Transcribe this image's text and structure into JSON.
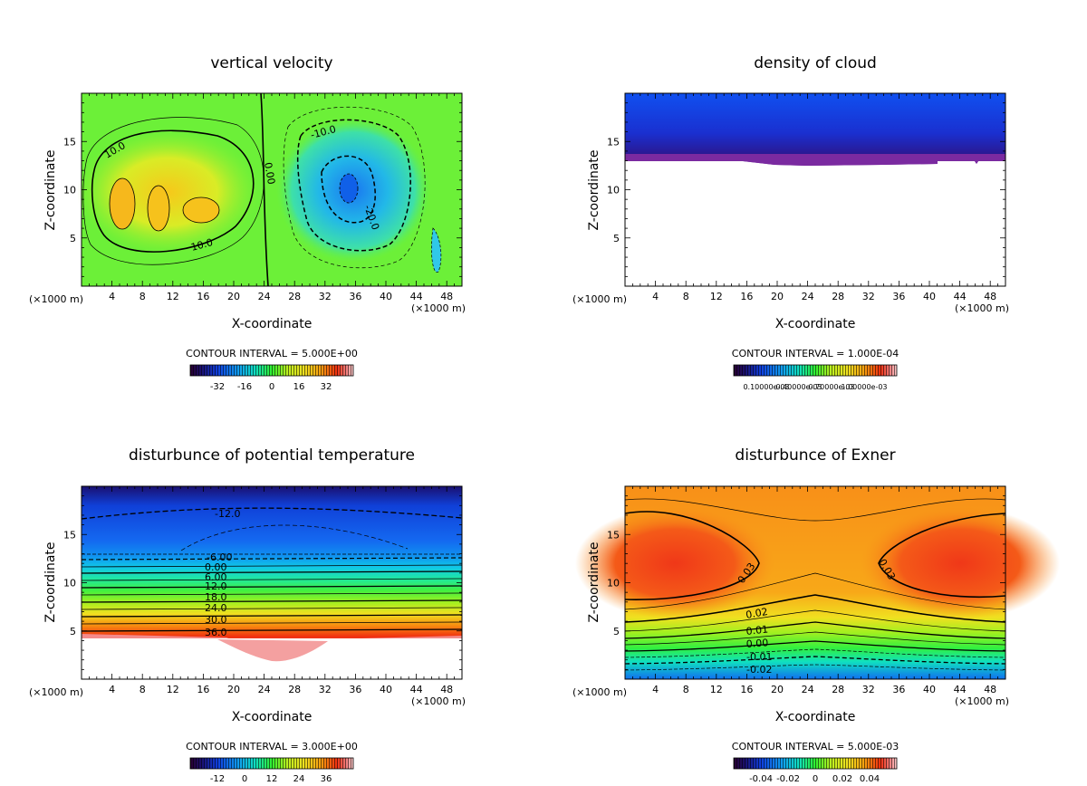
{
  "chart_data": [
    {
      "type": "heatmap",
      "title": "vertical velocity",
      "xlabel": "X-coordinate",
      "ylabel": "Z-coordinate",
      "xunit": "(×1000 m)",
      "xlim": [
        0,
        50
      ],
      "ylim": [
        0,
        20
      ],
      "xticks": [
        4,
        8,
        12,
        16,
        20,
        24,
        28,
        32,
        36,
        40,
        44,
        48
      ],
      "yticks": [
        5,
        10,
        15
      ],
      "contour_interval": "CONTOUR INTERVAL = 5.000E+00",
      "colorbar": {
        "min": -40,
        "max": 40,
        "ticks": [
          "-32",
          "-16",
          "0",
          "16",
          "32"
        ]
      },
      "contour_labels": [
        "10.0",
        "0.00",
        "10.0",
        "-10.0",
        "-20.0"
      ]
    },
    {
      "type": "heatmap",
      "title": "density of cloud",
      "xlabel": "X-coordinate",
      "ylabel": "Z-coordinate",
      "xunit": "(×1000 m)",
      "xlim": [
        0,
        50
      ],
      "ylim": [
        0,
        20
      ],
      "xticks": [
        4,
        8,
        12,
        16,
        20,
        24,
        28,
        32,
        36,
        40,
        44,
        48
      ],
      "yticks": [
        5,
        10,
        15
      ],
      "contour_interval": "CONTOUR INTERVAL = 1.000E-04",
      "colorbar": {
        "min": 0,
        "max": 0.0012,
        "ticks": [
          "0.10000e-03",
          "0.40000e-03",
          "0.70000e-03",
          "1.00000e-03"
        ]
      },
      "cloud_base_z": 13
    },
    {
      "type": "heatmap",
      "title": "disturbunce of potential temperature",
      "xlabel": "X-coordinate",
      "ylabel": "Z-coordinate",
      "xunit": "(×1000 m)",
      "xlim": [
        0,
        50
      ],
      "ylim": [
        0,
        20
      ],
      "xticks": [
        4,
        8,
        12,
        16,
        20,
        24,
        28,
        32,
        36,
        40,
        44,
        48
      ],
      "yticks": [
        5,
        10,
        15
      ],
      "contour_interval": "CONTOUR INTERVAL = 3.000E+00",
      "colorbar": {
        "min": -18,
        "max": 42,
        "ticks": [
          "-12",
          "0",
          "12",
          "24",
          "36"
        ]
      },
      "contour_labels": [
        "-12.0",
        "-6.00",
        "0.00",
        "6.00",
        "12.0",
        "18.0",
        "24.0",
        "30.0",
        "36.0"
      ]
    },
    {
      "type": "heatmap",
      "title": "disturbunce of Exner",
      "xlabel": "X-coordinate",
      "ylabel": "Z-coordinate",
      "xunit": "(×1000 m)",
      "xlim": [
        0,
        50
      ],
      "ylim": [
        0,
        20
      ],
      "xticks": [
        4,
        8,
        12,
        16,
        20,
        24,
        28,
        32,
        36,
        40,
        44,
        48
      ],
      "yticks": [
        5,
        10,
        15
      ],
      "contour_interval": "CONTOUR INTERVAL = 5.000E-03",
      "colorbar": {
        "min": -0.05,
        "max": 0.05,
        "ticks": [
          "-0.04",
          "-0.02",
          "0",
          "0.02",
          "0.04"
        ]
      },
      "contour_labels": [
        "0.03",
        "0.03",
        "0.02",
        "0.01",
        "0.00",
        "-0.01",
        "-0.02"
      ]
    }
  ]
}
